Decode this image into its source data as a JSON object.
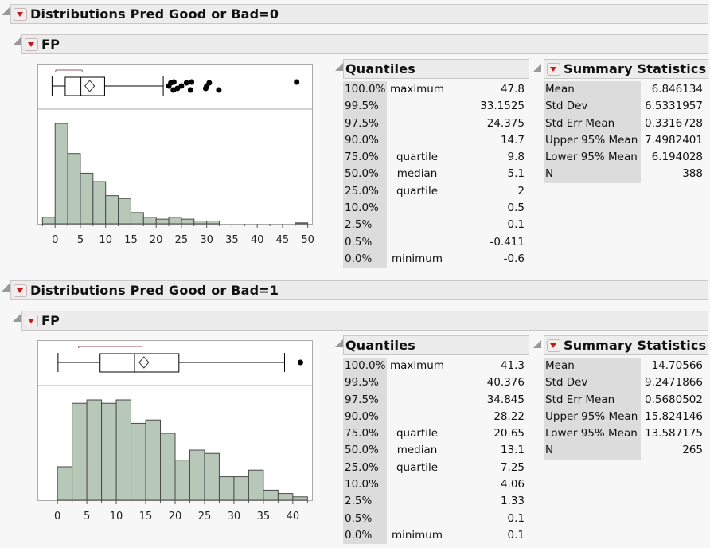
{
  "colors": {
    "bar_fill": "#b8c8b8",
    "bar_stroke": "#4a4a4a",
    "bracket": "#a05060",
    "header_bg": "#ececec",
    "label_bg": "#dcdcdc",
    "menu_arrow": "#c41a1a"
  },
  "sections": [
    {
      "title": "Distributions Pred Good or Bad=0",
      "variable": "FP",
      "quantiles_title": "Quantiles",
      "summary_title": "Summary Statistics",
      "quantiles": [
        {
          "pct": "100.0%",
          "name": "maximum",
          "value": "47.8"
        },
        {
          "pct": "99.5%",
          "name": "",
          "value": "33.1525"
        },
        {
          "pct": "97.5%",
          "name": "",
          "value": "24.375"
        },
        {
          "pct": "90.0%",
          "name": "",
          "value": "14.7"
        },
        {
          "pct": "75.0%",
          "name": "quartile",
          "value": "9.8"
        },
        {
          "pct": "50.0%",
          "name": "median",
          "value": "5.1"
        },
        {
          "pct": "25.0%",
          "name": "quartile",
          "value": "2"
        },
        {
          "pct": "10.0%",
          "name": "",
          "value": "0.5"
        },
        {
          "pct": "2.5%",
          "name": "",
          "value": "0.1"
        },
        {
          "pct": "0.5%",
          "name": "",
          "value": "-0.411"
        },
        {
          "pct": "0.0%",
          "name": "minimum",
          "value": "-0.6"
        }
      ],
      "summary": [
        {
          "label": "Mean",
          "value": "6.846134"
        },
        {
          "label": "Std Dev",
          "value": "6.5331957"
        },
        {
          "label": "Std Err Mean",
          "value": "0.3316728"
        },
        {
          "label": "Upper 95% Mean",
          "value": "7.4982401"
        },
        {
          "label": "Lower 95% Mean",
          "value": "6.194028"
        },
        {
          "label": "N",
          "value": "388"
        }
      ]
    },
    {
      "title": "Distributions Pred Good or Bad=1",
      "variable": "FP",
      "quantiles_title": "Quantiles",
      "summary_title": "Summary Statistics",
      "quantiles": [
        {
          "pct": "100.0%",
          "name": "maximum",
          "value": "41.3"
        },
        {
          "pct": "99.5%",
          "name": "",
          "value": "40.376"
        },
        {
          "pct": "97.5%",
          "name": "",
          "value": "34.845"
        },
        {
          "pct": "90.0%",
          "name": "",
          "value": "28.22"
        },
        {
          "pct": "75.0%",
          "name": "quartile",
          "value": "20.65"
        },
        {
          "pct": "50.0%",
          "name": "median",
          "value": "13.1"
        },
        {
          "pct": "25.0%",
          "name": "quartile",
          "value": "7.25"
        },
        {
          "pct": "10.0%",
          "name": "",
          "value": "4.06"
        },
        {
          "pct": "2.5%",
          "name": "",
          "value": "1.33"
        },
        {
          "pct": "0.5%",
          "name": "",
          "value": "0.1"
        },
        {
          "pct": "0.0%",
          "name": "minimum",
          "value": "0.1"
        }
      ],
      "summary": [
        {
          "label": "Mean",
          "value": "14.70566"
        },
        {
          "label": "Std Dev",
          "value": "9.2471866"
        },
        {
          "label": "Std Err Mean",
          "value": "0.5680502"
        },
        {
          "label": "Upper 95% Mean",
          "value": "15.824146"
        },
        {
          "label": "Lower 95% Mean",
          "value": "13.587175"
        },
        {
          "label": "N",
          "value": "265"
        }
      ]
    }
  ],
  "chart_data": [
    {
      "type": "bar",
      "subtype": "histogram",
      "bin_start": -2.5,
      "bin_width": 2.5,
      "counts": [
        7,
        107,
        75,
        54,
        45,
        30,
        27,
        12,
        7,
        5,
        7,
        5,
        3,
        3,
        0,
        0,
        0,
        0,
        0,
        0,
        1
      ],
      "xlim": [
        -3.5,
        51
      ],
      "xticks": [
        "0",
        "5",
        "10",
        "15",
        "20",
        "25",
        "30",
        "35",
        "40",
        "45",
        "50"
      ],
      "boxplot": {
        "whisker_low": -0.6,
        "q1": 2,
        "median": 5.1,
        "q3": 9.8,
        "whisker_high": 21.4,
        "mean": 6.846134,
        "shortest_half": [
          0.1,
          5.35
        ],
        "outliers": [
          22.5,
          22.9,
          23.4,
          23.5,
          24.2,
          25,
          26,
          26.8,
          27,
          29.8,
          30,
          30.5,
          32.4,
          47.8
        ]
      }
    },
    {
      "type": "bar",
      "subtype": "histogram",
      "bin_start": 0,
      "bin_width": 2.5,
      "counts": [
        10,
        29,
        30,
        29,
        30,
        23,
        24,
        20,
        12,
        15,
        14,
        7,
        7,
        9,
        3,
        2,
        1
      ],
      "xlim": [
        -3.4,
        43.4
      ],
      "xticks": [
        "0",
        "5",
        "10",
        "15",
        "20",
        "25",
        "30",
        "35",
        "40"
      ],
      "boxplot": {
        "whisker_low": 0.1,
        "q1": 7.25,
        "median": 13.1,
        "q3": 20.65,
        "whisker_high": 38.6,
        "mean": 14.70566,
        "shortest_half": [
          3.6,
          14.4
        ],
        "outliers": [
          41.3
        ]
      }
    }
  ]
}
